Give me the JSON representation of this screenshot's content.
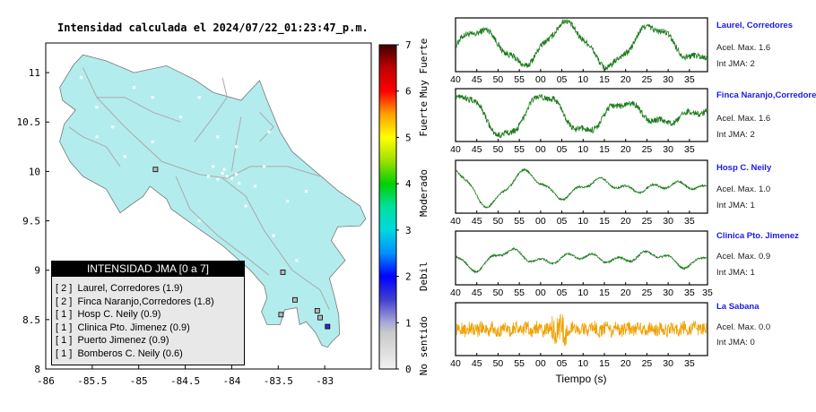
{
  "title": "Intensidad calculada el 2024/07/22_01:23:47_p.m.",
  "map": {
    "x_ticks": [
      "-86",
      "-85.5",
      "-85",
      "-84.5",
      "-84",
      "-83.5",
      "-83"
    ],
    "y_ticks": [
      "11",
      "10.5",
      "10",
      "9.5",
      "9",
      "8.5",
      "8"
    ],
    "x_range": [
      -86,
      -82.5
    ],
    "y_range": [
      8,
      11.3
    ],
    "land_color": "#b3ecec"
  },
  "colorbar": {
    "ticks": [
      "0",
      "1",
      "2",
      "3",
      "4",
      "5",
      "6",
      "7"
    ],
    "labels": [
      "No sentido",
      "Debil",
      "Moderado",
      "Fuerte",
      "Muy Fuerte"
    ]
  },
  "legend": {
    "title": "INTENSIDAD JMA [0 a 7]",
    "rows": [
      "[ 2 ]  Laurel, Corredores (1.9)",
      "[ 2 ]  Finca Naranjo,Corredores (1.8)",
      "[ 1 ]  Hosp C. Neily (0.9)",
      "[ 1 ]  Clinica Pto. Jimenez (0.9)",
      "[ 1 ]  Puerto Jimenez (0.9)",
      "[ 1 ]  Bomberos C. Neily (0.6)"
    ]
  },
  "chart_data": {
    "type": "line",
    "xlabel": "Tiempo (s)",
    "x_ticks": [
      "40",
      "45",
      "50",
      "55",
      "00",
      "05",
      "10",
      "15",
      "20",
      "25",
      "30",
      "35"
    ],
    "last_x_tick": "35",
    "series": [
      {
        "name": "Laurel, Corredores",
        "acel": "Acel. Max. 1.6",
        "int": "Int JMA: 2",
        "color": "#1a7a1a",
        "peak": 1.6
      },
      {
        "name": "Finca Naranjo,Corredores",
        "acel": "Acel. Max. 1.6",
        "int": "Int JMA: 2",
        "color": "#1a7a1a",
        "peak": 1.6
      },
      {
        "name": "Hosp C. Neily",
        "acel": "Acel. Max. 1.0",
        "int": "Int JMA: 1",
        "color": "#1a7a1a",
        "peak": 1.0
      },
      {
        "name": "Clinica Pto. Jimenez",
        "acel": "Acel. Max. 0.9",
        "int": "Int JMA: 1",
        "color": "#1a7a1a",
        "peak": 0.9
      },
      {
        "name": "La Sabana",
        "acel": "Acel. Max. 0.0",
        "int": "Int JMA: 0",
        "color": "#f0a000",
        "peak": 0.0
      }
    ]
  }
}
